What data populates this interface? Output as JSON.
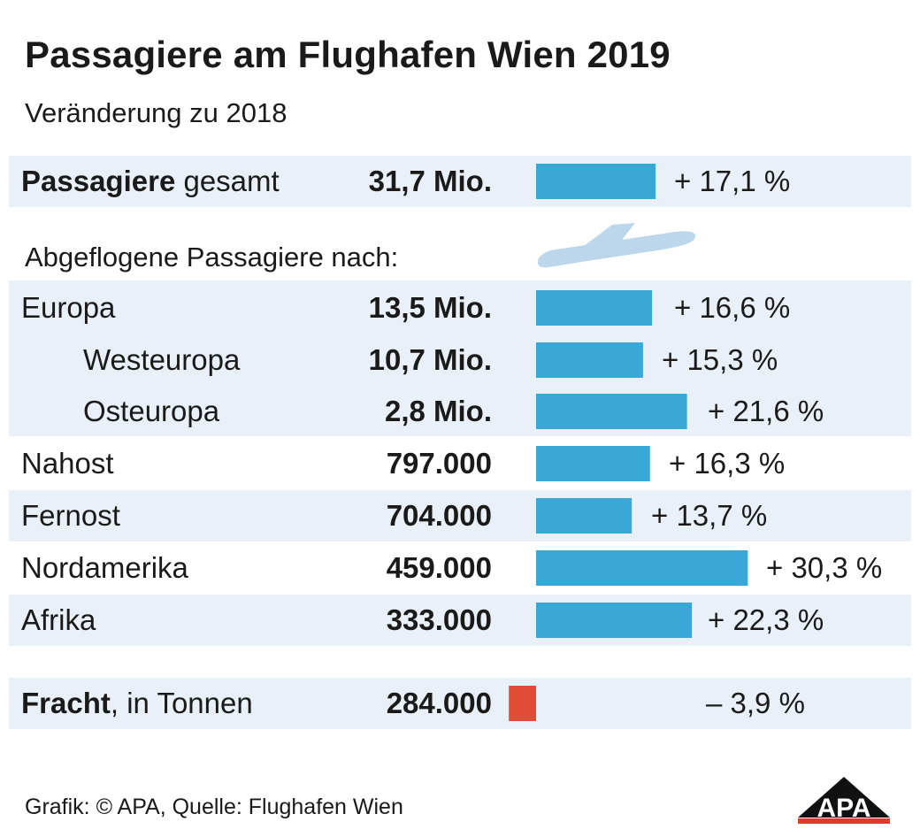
{
  "title": "Passagiere am Flughafen Wien 2019",
  "subtitle": "Veränderung zu 2018",
  "section_label": "Abgeflogene Passagiere nach:",
  "footer": "Grafik: © APA, Quelle: Flughafen Wien",
  "logo_text": "APA",
  "icons": [
    "airplane-icon",
    "apa-logo-icon"
  ],
  "colors": {
    "bar_positive": "#3aa8d6",
    "bar_negative": "#e04b35",
    "band": "#e9f0f7",
    "plane": "#bcd7ec"
  },
  "chart_data": {
    "type": "bar",
    "title": "Passagiere am Flughafen Wien 2019",
    "subtitle": "Veränderung zu 2018",
    "unit": "%",
    "rows": [
      {
        "label_bold": "Passagiere",
        "label_rest": " gesamt",
        "value": "31,7 Mio.",
        "change": 17.1,
        "change_label": "+ 17,1 %"
      },
      {
        "label_bold": "",
        "label_rest": "Europa",
        "value": "13,5 Mio.",
        "change": 16.6,
        "change_label": "+ 16,6 %"
      },
      {
        "label_bold": "",
        "label_rest": "Westeuropa",
        "value": "10,7 Mio.",
        "change": 15.3,
        "change_label": "+ 15,3 %"
      },
      {
        "label_bold": "",
        "label_rest": "Osteuropa",
        "value": "2,8 Mio.",
        "change": 21.6,
        "change_label": "+ 21,6 %"
      },
      {
        "label_bold": "",
        "label_rest": "Nahost",
        "value": "797.000",
        "change": 16.3,
        "change_label": "+ 16,3 %"
      },
      {
        "label_bold": "",
        "label_rest": "Fernost",
        "value": "704.000",
        "change": 13.7,
        "change_label": "+ 13,7 %"
      },
      {
        "label_bold": "",
        "label_rest": "Nordamerika",
        "value": "459.000",
        "change": 30.3,
        "change_label": "+ 30,3 %"
      },
      {
        "label_bold": "",
        "label_rest": "Afrika",
        "value": "333.000",
        "change": 22.3,
        "change_label": "+ 22,3 %"
      },
      {
        "label_bold": "Fracht",
        "label_rest": ", in Tonnen",
        "value": "284.000",
        "change": -3.9,
        "change_label": "– 3,9 %"
      }
    ]
  }
}
